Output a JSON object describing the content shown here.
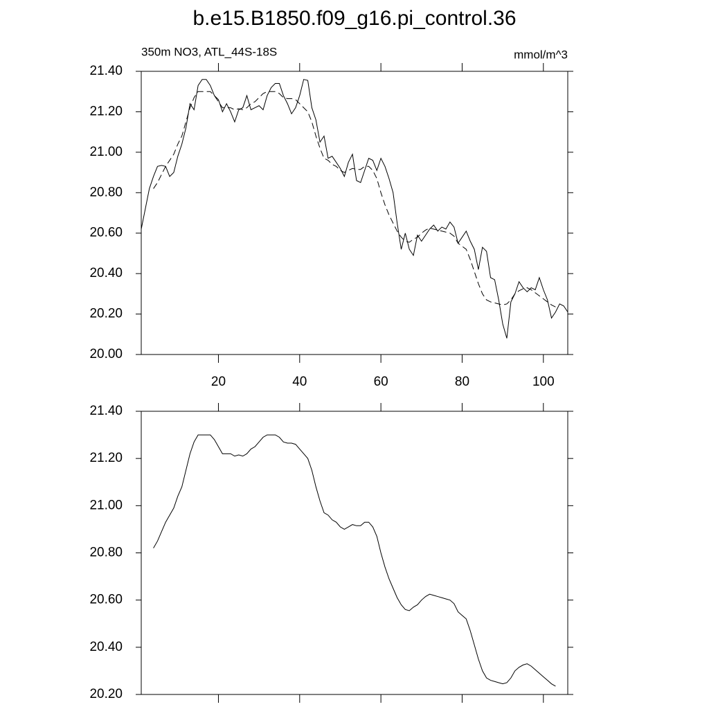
{
  "chart_data": [
    {
      "type": "line",
      "title": "b.e15.B1850.f09_g16.pi_control.36",
      "subtitle_left": "350m NO3, ATL_44S-18S",
      "subtitle_right": "mmol/m^3",
      "x": [
        1,
        2,
        3,
        4,
        5,
        6,
        7,
        8,
        9,
        10,
        11,
        12,
        13,
        14,
        15,
        16,
        17,
        18,
        19,
        20,
        21,
        22,
        23,
        24,
        25,
        26,
        27,
        28,
        29,
        30,
        31,
        32,
        33,
        34,
        35,
        36,
        37,
        38,
        39,
        40,
        41,
        42,
        43,
        44,
        45,
        46,
        47,
        48,
        49,
        50,
        51,
        52,
        53,
        54,
        55,
        56,
        57,
        58,
        59,
        60,
        61,
        62,
        63,
        64,
        65,
        66,
        67,
        68,
        69,
        70,
        71,
        72,
        73,
        74,
        75,
        76,
        77,
        78,
        79,
        80,
        81,
        82,
        83,
        84,
        85,
        86,
        87,
        88,
        89,
        90,
        91,
        92,
        93,
        94,
        95,
        96,
        97,
        98,
        99,
        100,
        101,
        102,
        103,
        104,
        105,
        106
      ],
      "series": [
        {
          "color": "#000000",
          "dash": "solid",
          "values": [
            20.62,
            20.72,
            20.82,
            20.88,
            20.93,
            20.935,
            20.93,
            20.88,
            20.9,
            20.98,
            21.04,
            21.12,
            21.24,
            21.21,
            21.33,
            21.36,
            21.36,
            21.33,
            21.28,
            21.26,
            21.2,
            21.24,
            21.2,
            21.15,
            21.21,
            21.22,
            21.28,
            21.21,
            21.22,
            21.23,
            21.21,
            21.28,
            21.32,
            21.34,
            21.34,
            21.28,
            21.24,
            21.19,
            21.22,
            21.28,
            21.36,
            21.355,
            21.22,
            21.16,
            21.05,
            21.08,
            20.97,
            20.98,
            20.95,
            20.92,
            20.88,
            20.95,
            20.99,
            20.86,
            20.85,
            20.91,
            20.97,
            20.96,
            20.91,
            20.97,
            20.93,
            20.87,
            20.8,
            20.65,
            20.52,
            20.6,
            20.52,
            20.49,
            20.59,
            20.56,
            20.59,
            20.62,
            20.64,
            20.61,
            20.63,
            20.62,
            20.655,
            20.63,
            20.55,
            20.58,
            20.61,
            20.56,
            20.52,
            20.42,
            20.53,
            20.51,
            20.38,
            20.37,
            20.27,
            20.15,
            20.08,
            20.26,
            20.3,
            20.36,
            20.33,
            20.31,
            20.33,
            20.32,
            20.38,
            20.32,
            20.27,
            20.18,
            20.21,
            20.25,
            20.24,
            20.21
          ]
        },
        {
          "color": "#000000",
          "dash": "dashed",
          "values": [
            null,
            null,
            null,
            20.82,
            20.85,
            20.89,
            20.93,
            20.96,
            20.99,
            21.04,
            21.08,
            21.15,
            21.22,
            21.27,
            21.3,
            21.3,
            21.3,
            21.3,
            21.28,
            21.25,
            21.22,
            21.22,
            21.22,
            21.21,
            21.215,
            21.21,
            21.22,
            21.24,
            21.25,
            21.27,
            21.29,
            21.3,
            21.3,
            21.3,
            21.29,
            21.27,
            21.265,
            21.265,
            21.26,
            21.24,
            21.22,
            21.2,
            21.15,
            21.08,
            21.02,
            20.97,
            20.96,
            20.94,
            20.93,
            20.91,
            20.9,
            20.91,
            20.92,
            20.915,
            20.915,
            20.93,
            20.93,
            20.91,
            20.87,
            20.8,
            20.74,
            20.69,
            20.65,
            20.61,
            20.58,
            20.56,
            20.555,
            20.57,
            20.58,
            20.6,
            20.615,
            20.625,
            20.62,
            20.615,
            20.61,
            20.605,
            20.6,
            20.585,
            20.55,
            20.535,
            20.52,
            20.47,
            20.41,
            20.35,
            20.3,
            20.27,
            20.26,
            20.255,
            20.25,
            20.245,
            20.25,
            20.27,
            20.3,
            20.315,
            20.325,
            20.33,
            20.32,
            20.305,
            20.29,
            20.275,
            20.26,
            20.245,
            20.235,
            null,
            null,
            null
          ]
        }
      ],
      "xlim": [
        1,
        106
      ],
      "xticks": [
        20,
        40,
        60,
        80,
        100
      ],
      "ylim": [
        20,
        21.4
      ],
      "yticks": [
        {
          "value": 20,
          "label": "20.00"
        },
        {
          "value": 20.2,
          "label": "20.20"
        },
        {
          "value": 20.4,
          "label": "20.40"
        },
        {
          "value": 20.6,
          "label": "20.60"
        },
        {
          "value": 20.8,
          "label": "20.80"
        },
        {
          "value": 21,
          "label": "21.00"
        },
        {
          "value": 21.2,
          "label": "21.20"
        },
        {
          "value": 21.4,
          "label": "21.40"
        }
      ],
      "show_xtick_labels": true
    },
    {
      "type": "line",
      "x": [
        1,
        2,
        3,
        4,
        5,
        6,
        7,
        8,
        9,
        10,
        11,
        12,
        13,
        14,
        15,
        16,
        17,
        18,
        19,
        20,
        21,
        22,
        23,
        24,
        25,
        26,
        27,
        28,
        29,
        30,
        31,
        32,
        33,
        34,
        35,
        36,
        37,
        38,
        39,
        40,
        41,
        42,
        43,
        44,
        45,
        46,
        47,
        48,
        49,
        50,
        51,
        52,
        53,
        54,
        55,
        56,
        57,
        58,
        59,
        60,
        61,
        62,
        63,
        64,
        65,
        66,
        67,
        68,
        69,
        70,
        71,
        72,
        73,
        74,
        75,
        76,
        77,
        78,
        79,
        80,
        81,
        82,
        83,
        84,
        85,
        86,
        87,
        88,
        89,
        90,
        91,
        92,
        93,
        94,
        95,
        96,
        97,
        98,
        99,
        100,
        101,
        102,
        103,
        104,
        105,
        106
      ],
      "series": [
        {
          "color": "#000000",
          "dash": "solid",
          "values": [
            null,
            null,
            null,
            20.82,
            20.85,
            20.89,
            20.93,
            20.96,
            20.99,
            21.04,
            21.08,
            21.15,
            21.22,
            21.27,
            21.3,
            21.3,
            21.3,
            21.3,
            21.28,
            21.25,
            21.22,
            21.22,
            21.22,
            21.21,
            21.215,
            21.21,
            21.22,
            21.24,
            21.25,
            21.27,
            21.29,
            21.3,
            21.3,
            21.3,
            21.29,
            21.27,
            21.265,
            21.265,
            21.26,
            21.24,
            21.22,
            21.2,
            21.15,
            21.08,
            21.02,
            20.97,
            20.96,
            20.94,
            20.93,
            20.91,
            20.9,
            20.91,
            20.92,
            20.915,
            20.915,
            20.93,
            20.93,
            20.91,
            20.87,
            20.8,
            20.74,
            20.69,
            20.65,
            20.61,
            20.58,
            20.56,
            20.555,
            20.57,
            20.58,
            20.6,
            20.615,
            20.625,
            20.62,
            20.615,
            20.61,
            20.605,
            20.6,
            20.585,
            20.55,
            20.535,
            20.52,
            20.47,
            20.41,
            20.35,
            20.3,
            20.27,
            20.26,
            20.255,
            20.25,
            20.245,
            20.25,
            20.27,
            20.3,
            20.315,
            20.325,
            20.33,
            20.32,
            20.305,
            20.29,
            20.275,
            20.26,
            20.245,
            20.235,
            null,
            null,
            null
          ]
        }
      ],
      "xlim": [
        1,
        106
      ],
      "xticks": [
        20,
        40,
        60,
        80,
        100
      ],
      "ylim": [
        20.2,
        21.4
      ],
      "yticks": [
        {
          "value": 20.2,
          "label": "20.20"
        },
        {
          "value": 20.4,
          "label": "20.40"
        },
        {
          "value": 20.6,
          "label": "20.60"
        },
        {
          "value": 20.8,
          "label": "20.80"
        },
        {
          "value": 21,
          "label": "21.00"
        },
        {
          "value": 21.2,
          "label": "21.20"
        },
        {
          "value": 21.4,
          "label": "21.40"
        }
      ],
      "show_xtick_labels": false
    }
  ]
}
